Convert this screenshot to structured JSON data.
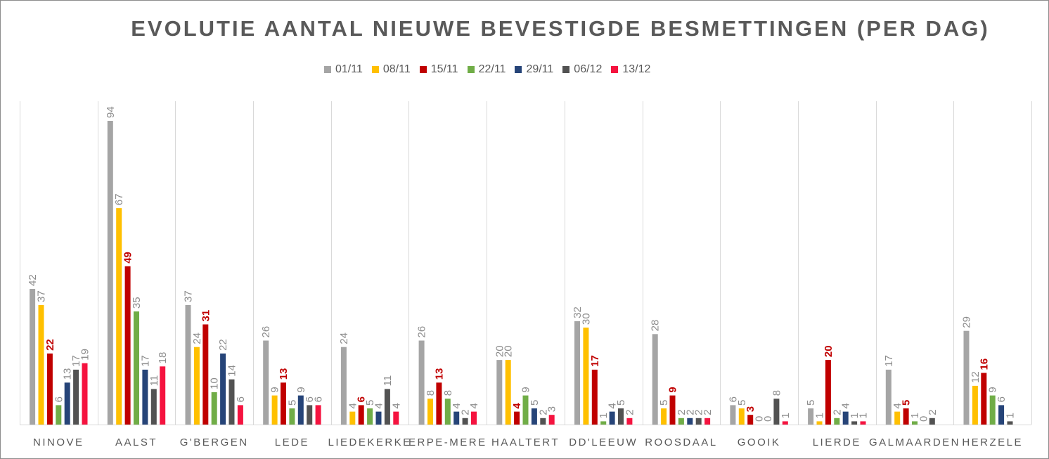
{
  "chart_data": {
    "type": "bar",
    "title": "EVOLUTIE AANTAL NIEUWE BEVESTIGDE BESMETTINGEN (PER DAG)",
    "xlabel": "",
    "ylabel": "",
    "ylim": [
      0,
      100
    ],
    "grid": "vertical category separators",
    "legend_position": "top",
    "categories": [
      "NINOVE",
      "AALST",
      "G'BERGEN",
      "LEDE",
      "LIEDEKERKE",
      "ERPE-MERE",
      "HAALTERT",
      "DD'LEEUW",
      "ROOSDAAL",
      "GOOIK",
      "LIERDE",
      "GALMAARDEN",
      "HERZELE"
    ],
    "series": [
      {
        "name": "01/11",
        "color": "#a5a5a5",
        "values": [
          42,
          94,
          37,
          26,
          24,
          26,
          20,
          32,
          28,
          6,
          5,
          17,
          29
        ],
        "labels": [
          "42",
          "94",
          "37",
          "26",
          "24",
          "26",
          "20",
          "32",
          "28",
          "6",
          "5",
          "17",
          "29"
        ]
      },
      {
        "name": "08/11",
        "color": "#ffc000",
        "values": [
          37,
          67,
          24,
          9,
          4,
          8,
          20,
          30,
          5,
          5,
          1,
          4,
          12
        ],
        "labels": [
          "37",
          "67",
          "24",
          "9",
          "4",
          "8",
          "20",
          "30",
          "5",
          "5",
          "1",
          "4",
          "12"
        ]
      },
      {
        "name": "15/11",
        "color": "#c00000",
        "values": [
          22,
          49,
          31,
          13,
          6,
          13,
          4,
          17,
          9,
          3,
          20,
          5,
          16
        ],
        "labels": [
          "22",
          "49",
          "31",
          "13",
          "6",
          "13",
          "4",
          "17",
          "9",
          "3",
          "20",
          "5",
          "16"
        ]
      },
      {
        "name": "22/11",
        "color": "#70ad47",
        "values": [
          6,
          35,
          10,
          5,
          5,
          8,
          9,
          1,
          2,
          0,
          2,
          1,
          9
        ],
        "labels": [
          "6",
          "35",
          "10",
          "5",
          "5",
          "8",
          "9",
          "1",
          "2",
          "0",
          "2",
          "1",
          "9"
        ]
      },
      {
        "name": "29/11",
        "color": "#264478",
        "values": [
          13,
          17,
          22,
          9,
          4,
          4,
          5,
          4,
          2,
          0,
          4,
          0,
          6
        ],
        "labels": [
          "13",
          "17",
          "22",
          "9",
          "4",
          "4",
          "5",
          "4",
          "2",
          "0",
          "4",
          "0",
          "6"
        ]
      },
      {
        "name": "06/12",
        "color": "#525252",
        "values": [
          17,
          11,
          14,
          6,
          11,
          2,
          2,
          5,
          2,
          8,
          1,
          2,
          1
        ],
        "labels": [
          "17",
          "11",
          "14",
          "6",
          "11",
          "2",
          "2",
          "5",
          "2",
          "8",
          "1",
          "2",
          "1"
        ]
      },
      {
        "name": "13/12",
        "color": "#f5133f",
        "values": [
          19,
          18,
          6,
          6,
          4,
          4,
          3,
          2,
          2,
          1,
          1,
          0,
          0
        ],
        "labels": [
          "19",
          "18",
          "6",
          "6",
          "4",
          "4",
          "3",
          "2",
          "2",
          "1",
          "1",
          "",
          ""
        ]
      }
    ]
  }
}
